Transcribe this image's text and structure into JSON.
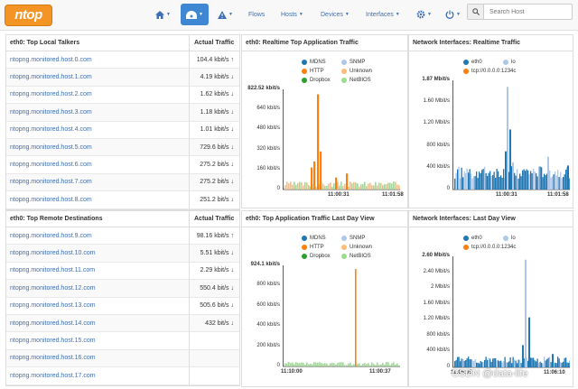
{
  "app": {
    "logo_text": "ntop",
    "nav": [
      {
        "label": "",
        "icon": "home-icon"
      },
      {
        "label": "",
        "icon": "dashboard-icon"
      },
      {
        "label": "",
        "icon": "alert-icon"
      },
      {
        "label": "Flows"
      },
      {
        "label": "Hosts"
      },
      {
        "label": "Devices"
      },
      {
        "label": "Interfaces"
      },
      {
        "label": "",
        "icon": "gear-icon"
      },
      {
        "label": "",
        "icon": "power-icon"
      }
    ],
    "search_placeholder": "Search Host"
  },
  "local_talkers": {
    "title": "eth0: Top Local Talkers",
    "col_traffic": "Actual Traffic",
    "rows": [
      {
        "host": "ntopng.monitored.host.0.com",
        "traffic": "104.4 kbit/s",
        "trend": "up"
      },
      {
        "host": "ntopng.monitored.host.1.com",
        "traffic": "4.19 kbit/s",
        "trend": "down"
      },
      {
        "host": "ntopng.monitored.host.2.com",
        "traffic": "1.62 kbit/s",
        "trend": "down"
      },
      {
        "host": "ntopng.monitored.host.3.com",
        "traffic": "1.18 kbit/s",
        "trend": "down"
      },
      {
        "host": "ntopng.monitored.host.4.com",
        "traffic": "1.01 kbit/s",
        "trend": "down"
      },
      {
        "host": "ntopng.monitored.host.5.com",
        "traffic": "729.6 bit/s",
        "trend": "down"
      },
      {
        "host": "ntopng.monitored.host.6.com",
        "traffic": "275.2 bit/s",
        "trend": "down"
      },
      {
        "host": "ntopng.monitored.host.7.com",
        "traffic": "275.2 bit/s",
        "trend": "down"
      },
      {
        "host": "ntopng.monitored.host.8.com",
        "traffic": "251.2 bit/s",
        "trend": "down"
      }
    ]
  },
  "remote_destinations": {
    "title": "eth0: Top Remote Destinations",
    "col_traffic": "Actual Traffic",
    "rows": [
      {
        "host": "ntopng.monitored.host.9.com",
        "traffic": "98.16 kbit/s",
        "trend": "up"
      },
      {
        "host": "ntopng.monitored.host.10.com",
        "traffic": "5.51 kbit/s",
        "trend": "down"
      },
      {
        "host": "ntopng.monitored.host.11.com",
        "traffic": "2.29 kbit/s",
        "trend": "down"
      },
      {
        "host": "ntopng.monitored.host.12.com",
        "traffic": "550.4 bit/s",
        "trend": "down"
      },
      {
        "host": "ntopng.monitored.host.13.com",
        "traffic": "505.6 bit/s",
        "trend": "down"
      },
      {
        "host": "ntopng.monitored.host.14.com",
        "traffic": "432 bit/s",
        "trend": "down"
      },
      {
        "host": "ntopng.monitored.host.15.com",
        "traffic": "",
        "trend": ""
      },
      {
        "host": "ntopng.monitored.host.16.com",
        "traffic": "",
        "trend": ""
      },
      {
        "host": "ntopng.monitored.host.17.com",
        "traffic": "",
        "trend": ""
      }
    ]
  },
  "panels": {
    "rt_app": {
      "title": "eth0: Realtime Top Application Traffic",
      "legend": [
        {
          "name": "MDNS",
          "color": "#1f77b4"
        },
        {
          "name": "SNMP",
          "color": "#aec7e8"
        },
        {
          "name": "HTTP",
          "color": "#ff7f0e"
        },
        {
          "name": "Unknown",
          "color": "#ffbb78"
        },
        {
          "name": "Dropbox",
          "color": "#2ca02c"
        },
        {
          "name": "NetBIOS",
          "color": "#98df8a"
        }
      ],
      "y_labels": [
        "822.52 kbit/s",
        "640 kbit/s",
        "480 kbit/s",
        "320 kbit/s",
        "160 kbit/s",
        "0"
      ],
      "x_labels": [
        "11:00:31",
        "11:01:58"
      ]
    },
    "rt_if": {
      "title": "Network Interfaces: Realtime Traffic",
      "legend": [
        {
          "name": "eth0",
          "color": "#1f77b4"
        },
        {
          "name": "lo",
          "color": "#aec7e8"
        },
        {
          "name": "tcp://0.0.0.0:1234c",
          "color": "#ff7f0e"
        }
      ],
      "y_labels": [
        "1.87 Mbit/s",
        "1.60 Mbit/s",
        "1.20 Mbit/s",
        "800 kbit/s",
        "400 kbit/s",
        "0"
      ],
      "x_labels": [
        "11:00:31",
        "11:01:58"
      ]
    },
    "day_app": {
      "title": "eth0: Top Application Traffic Last Day View",
      "legend": [
        {
          "name": "MDNS",
          "color": "#1f77b4"
        },
        {
          "name": "SNMP",
          "color": "#aec7e8"
        },
        {
          "name": "HTTP",
          "color": "#ff7f0e"
        },
        {
          "name": "Unknown",
          "color": "#ffbb78"
        },
        {
          "name": "Dropbox",
          "color": "#2ca02c"
        },
        {
          "name": "NetBIOS",
          "color": "#98df8a"
        }
      ],
      "y_labels": [
        "924.1 kbit/s",
        "800 kbit/s",
        "600 kbit/s",
        "400 kbit/s",
        "200 kbit/s",
        "0"
      ],
      "x_labels": [
        "11:10:00",
        "11:00:37"
      ]
    },
    "day_if": {
      "title": "Network Interfaces: Last Day View",
      "legend": [
        {
          "name": "eth0",
          "color": "#1f77b4"
        },
        {
          "name": "lo",
          "color": "#aec7e8"
        },
        {
          "name": "tcp://0.0.0.0:1234c",
          "color": "#ff7f0e"
        }
      ],
      "y_labels": [
        "2.60 Mbit/s",
        "2.40 Mbit/s",
        "2 Mbit/s",
        "1.60 Mbit/s",
        "1.20 Mbit/s",
        "800 kbit/s",
        "400 kbit/s",
        "0"
      ],
      "x_labels": [
        "11:06:05",
        "11:06:10"
      ]
    }
  },
  "watermark": "CSDN @data-life"
}
